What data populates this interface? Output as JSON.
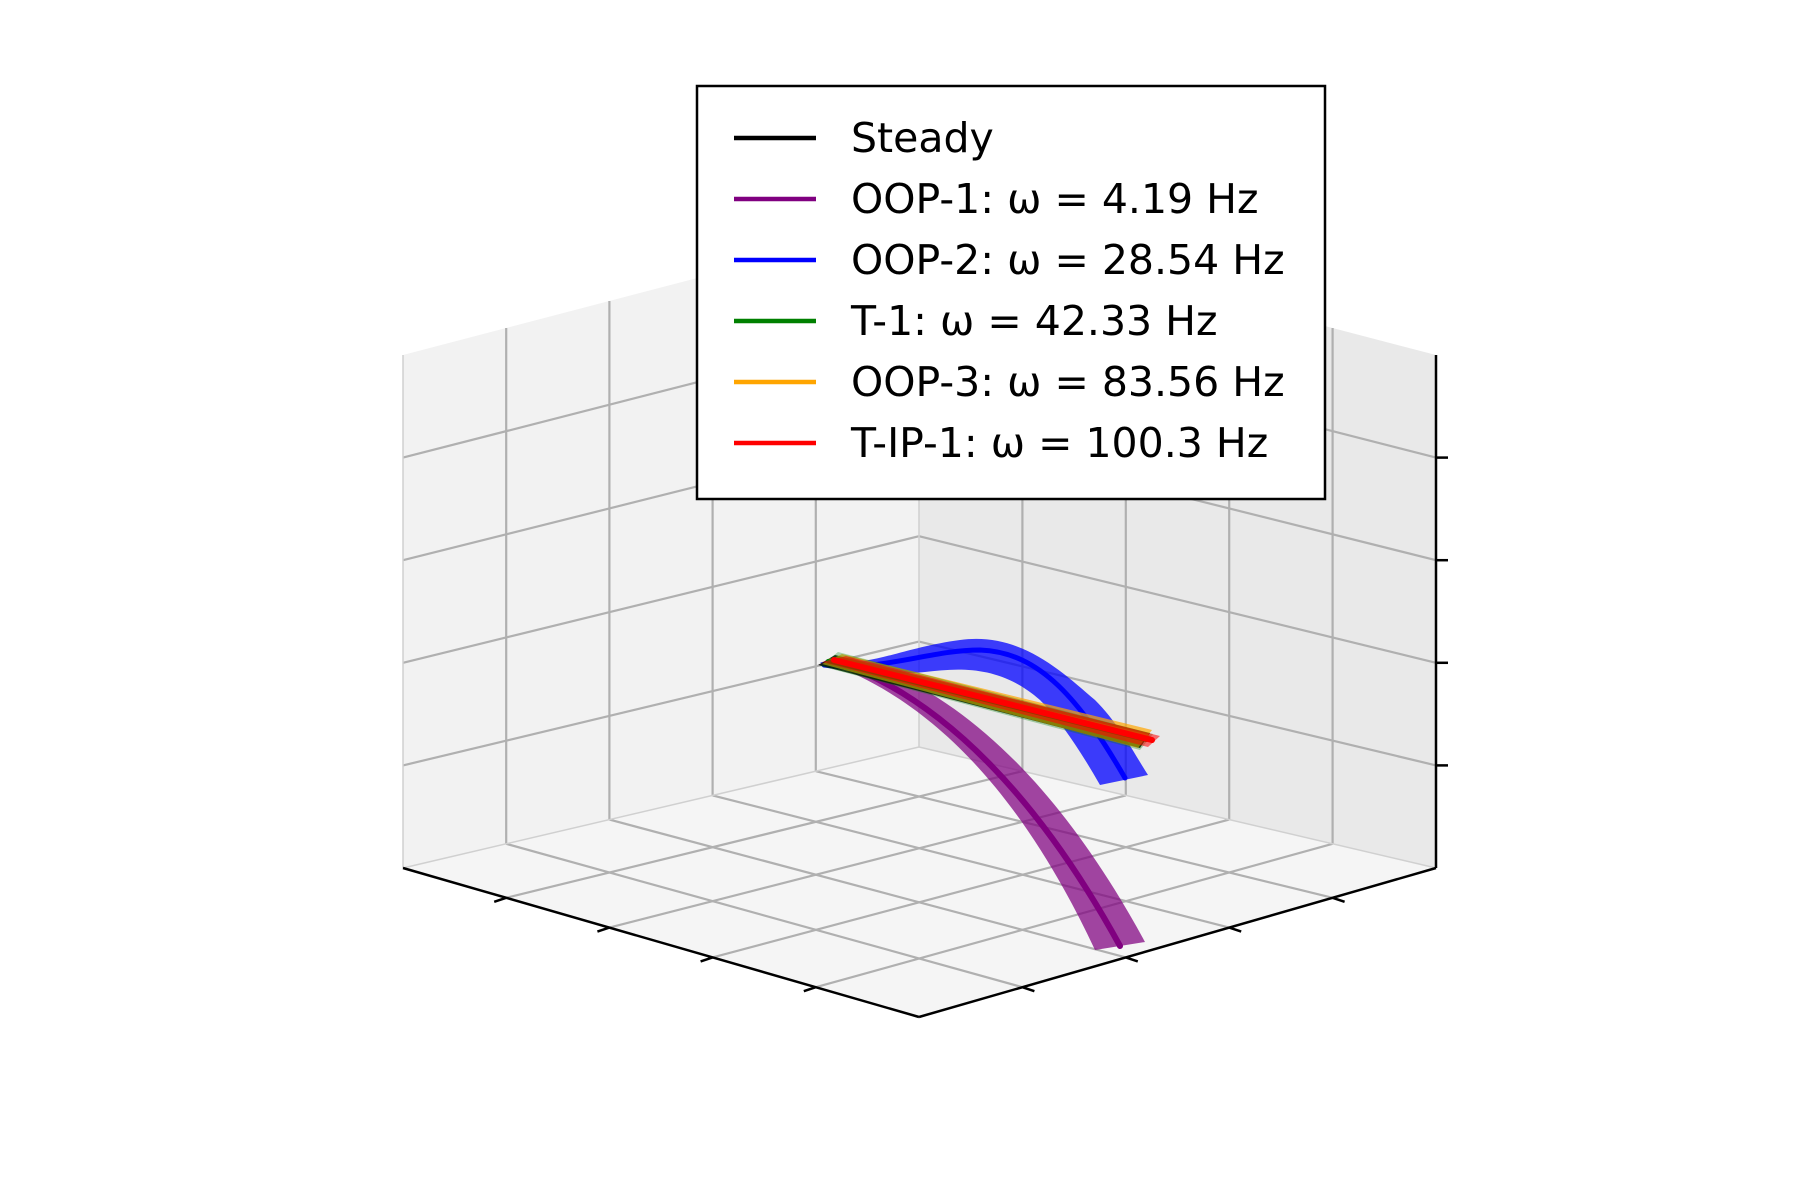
{
  "chart_data": {
    "type": "line",
    "projection": "3d",
    "grid": true,
    "legend_placement": "top-center",
    "axis_tick_labels_shown": false,
    "title": "",
    "xlabel": "",
    "ylabel": "",
    "zlabel": "",
    "series": [
      {
        "name": "Steady",
        "color": "#000000",
        "shape": "flat straight blade"
      },
      {
        "name": "OOP-1: ω = 4.19 Hz",
        "color": "#800080",
        "shape": "large downward bending"
      },
      {
        "name": "OOP-2: ω = 28.54 Hz",
        "color": "#0000ff",
        "shape": "upward hump then downward tip"
      },
      {
        "name": "T-1: ω = 42.33 Hz",
        "color": "#008000",
        "shape": "twist about span axis"
      },
      {
        "name": "OOP-3: ω = 83.56 Hz",
        "color": "#ffa500",
        "shape": "small flapping"
      },
      {
        "name": "T-IP-1: ω = 100.3 Hz",
        "color": "#ff0000",
        "shape": "twist with in-plane motion"
      }
    ]
  }
}
